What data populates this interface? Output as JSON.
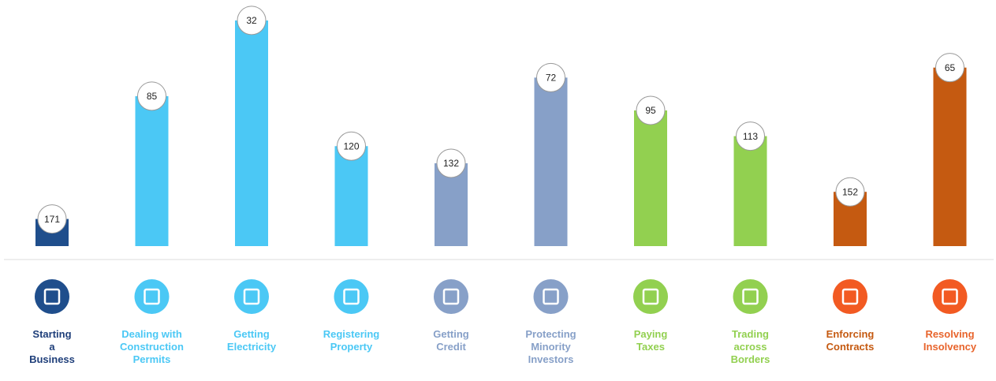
{
  "chart_data": {
    "type": "bar",
    "categories": [
      "Starting a Business",
      "Dealing with Construction Permits",
      "Getting Electricity",
      "Registering Property",
      "Getting Credit",
      "Protecting Minority Investors",
      "Paying Taxes",
      "Trading across Borders",
      "Enforcing Contracts",
      "Resolving Insolvency"
    ],
    "values": [
      171,
      85,
      32,
      120,
      132,
      72,
      95,
      113,
      152,
      65
    ],
    "colors": [
      "#1f4e8c",
      "#4bc8f5",
      "#4bc8f5",
      "#4bc8f5",
      "#87a0c8",
      "#87a0c8",
      "#92d050",
      "#92d050",
      "#c55a11",
      "#c55a11"
    ],
    "label_colors": [
      "#1f3f7a",
      "#4bc8f5",
      "#4bc8f5",
      "#4bc8f5",
      "#87a0c8",
      "#87a0c8",
      "#92d050",
      "#92d050",
      "#c55a11",
      "#e8642c"
    ],
    "icon_colors": [
      "#1f4e8c",
      "#4bc8f5",
      "#4bc8f5",
      "#4bc8f5",
      "#87a0c8",
      "#87a0c8",
      "#92d050",
      "#92d050",
      "#f25a22",
      "#f25a22"
    ],
    "ylim": [
      190,
      0
    ]
  }
}
